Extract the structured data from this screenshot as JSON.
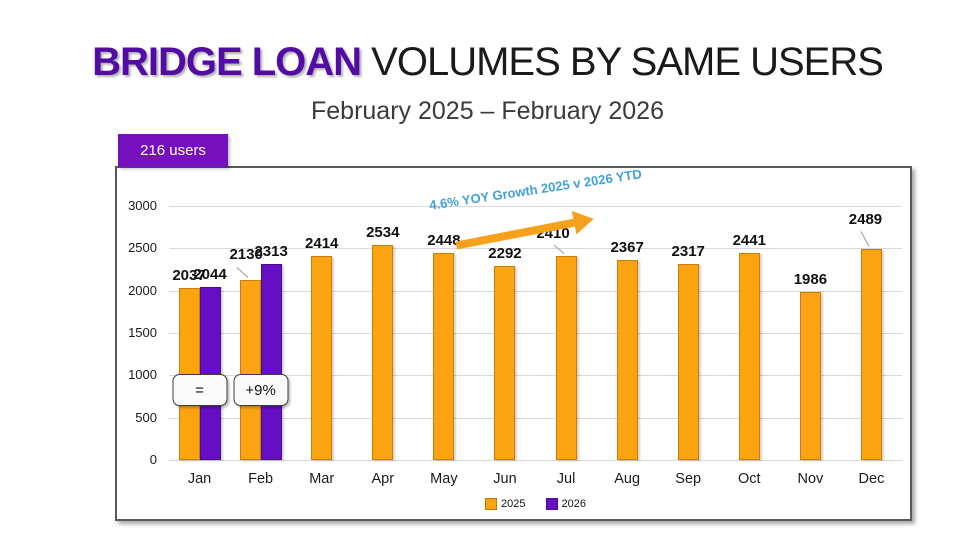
{
  "title": {
    "highlight": "BRIDGE LOAN",
    "rest": " VOLUMES BY SAME USERS"
  },
  "subtitle": "February 2025 – February 2026",
  "badge": {
    "label": "216 users"
  },
  "annotations": {
    "growth_label": "4.6% YOY Growth 2025 v 2026 YTD",
    "callouts": [
      {
        "text": "=",
        "month": "Jan"
      },
      {
        "text": "+9%",
        "month": "Feb"
      }
    ]
  },
  "colors": {
    "series_2025": "#FCA311",
    "series_2025_border": "#C87F0A",
    "series_2026": "#650EC6",
    "series_2026_border": "#4A1186",
    "badge_bg": "#7610BE",
    "title_highlight": "#520BA5",
    "growth_text": "#41A0DC",
    "arrow": "#F5A11C",
    "gridline": "#D8D8D8",
    "chart_border": "#595959"
  },
  "chart_data": {
    "type": "bar",
    "title": "BRIDGE LOAN VOLUMES BY SAME USERS",
    "subtitle": "February 2025 – February 2026",
    "categories": [
      "Jan",
      "Feb",
      "Mar",
      "Apr",
      "May",
      "Jun",
      "Jul",
      "Aug",
      "Sep",
      "Oct",
      "Nov",
      "Dec"
    ],
    "series": [
      {
        "name": "2025",
        "values": [
          2037,
          2130,
          2414,
          2534,
          2448,
          2292,
          2410,
          2367,
          2317,
          2441,
          1986,
          2489
        ]
      },
      {
        "name": "2026",
        "values": [
          2044,
          2313,
          null,
          null,
          null,
          null,
          null,
          null,
          null,
          null,
          null,
          null
        ]
      }
    ],
    "xlabel": "",
    "ylabel": "",
    "ylim": [
      0,
      3000
    ],
    "yticks": [
      0,
      500,
      1000,
      1500,
      2000,
      2500,
      3000
    ],
    "grid": true,
    "legend_position": "bottom",
    "data_labels": true
  }
}
